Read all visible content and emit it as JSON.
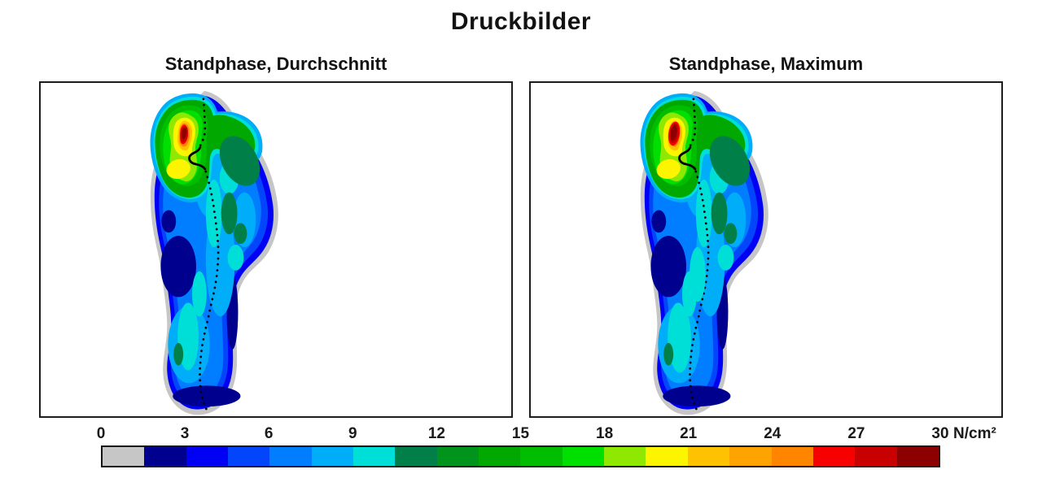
{
  "title": "Druckbilder",
  "panels": [
    {
      "title": "Standphase, Durchschnitt"
    },
    {
      "title": "Standphase, Maximum"
    }
  ],
  "colorbar": {
    "unit": "N/cm²",
    "ticks": [
      "0",
      "3",
      "6",
      "9",
      "12",
      "15",
      "18",
      "21",
      "24",
      "27",
      "30"
    ],
    "segment_colors": [
      "#c6c6c6",
      "#00008e",
      "#0000f5",
      "#0345fa",
      "#007eff",
      "#00adf8",
      "#00ded8",
      "#008048",
      "#00941c",
      "#00a800",
      "#00bd00",
      "#00e000",
      "#8ee800",
      "#fdf400",
      "#ffc100",
      "#ffa300",
      "#ff8400",
      "#f60000",
      "#c90000",
      "#8c0000"
    ]
  },
  "chart_data": {
    "type": "heatmap",
    "title": "Druckbilder",
    "unit": "N/cm²",
    "colorbar": {
      "min": 0,
      "max": 30,
      "tick_step": 3,
      "tick_labels": [
        0,
        3,
        6,
        9,
        12,
        15,
        18,
        21,
        24,
        27,
        30
      ],
      "n_segments": 20,
      "value_per_segment": 1.5,
      "segment_colors": [
        "#c6c6c6",
        "#00008e",
        "#0000f5",
        "#0345fa",
        "#007eff",
        "#00adf8",
        "#00ded8",
        "#008048",
        "#00941c",
        "#00a800",
        "#00bd00",
        "#00e000",
        "#8ee800",
        "#fdf400",
        "#ffc100",
        "#ffa300",
        "#ff8400",
        "#f60000",
        "#c90000",
        "#8c0000"
      ],
      "legend_note": "grey first segment = contact area below 1.5 N/cm²"
    },
    "panels": [
      {
        "title": "Standphase, Durchschnitt",
        "content": "plantar pressure distribution of one foot, toes at top, heel at bottom",
        "features": [
          {
            "region": "medial forefoot peak (hallux / 1st metatarsal)",
            "peak_value_ncm2": 30,
            "appearance": "dark red core with red, orange and yellow rings"
          },
          {
            "region": "secondary medial forefoot spot",
            "peak_value_ncm2": 21,
            "appearance": "yellow blob below the peak"
          },
          {
            "region": "central-lateral forefoot arc",
            "value_range_ncm2": [
              10.5,
              16.5
            ],
            "appearance": "green arc with dark sea-green patches"
          },
          {
            "region": "central midfoot strip",
            "value_range_ncm2": [
              7.5,
              10.5
            ],
            "appearance": "cyan / light blue"
          },
          {
            "region": "medial arch",
            "value_range_ncm2": [
              1.5,
              3
            ],
            "appearance": "dark navy patch"
          },
          {
            "region": "heel centre",
            "value_range_ncm2": [
              7.5,
              12
            ],
            "appearance": "cyan spot with small dark green core"
          },
          {
            "region": "heel rim",
            "value_range_ncm2": [
              1.5,
              3
            ],
            "appearance": "navy band at bottom edge"
          },
          {
            "region": "silhouette outline",
            "value_range_ncm2": [
              0,
              1.5
            ],
            "appearance": "grey contour around the whole foot"
          }
        ],
        "overlay": "dotted black centre-of-pressure gait line running from heel to toes with a small solid loop at metatarsal level"
      },
      {
        "title": "Standphase, Maximum",
        "content": "same foot, maximum pressure per sensor over the stance phase",
        "features": [
          {
            "region": "medial forefoot peak (hallux / 1st metatarsal)",
            "peak_value_ncm2": 30,
            "appearance": "slightly larger dark red core than in the average picture"
          },
          {
            "region": "secondary medial forefoot spot",
            "peak_value_ncm2": 21,
            "appearance": "yellow blob"
          },
          {
            "region": "central-lateral forefoot arc",
            "value_range_ncm2": [
              10.5,
              16.5
            ],
            "appearance": "green arc with dark sea-green patches"
          },
          {
            "region": "central midfoot strip",
            "value_range_ncm2": [
              7.5,
              10.5
            ],
            "appearance": "more extended cyan area"
          },
          {
            "region": "medial arch",
            "value_range_ncm2": [
              1.5,
              3
            ],
            "appearance": "dark navy patch"
          },
          {
            "region": "heel centre",
            "value_range_ncm2": [
              7.5,
              12
            ],
            "appearance": "cyan spot with small dark green core"
          },
          {
            "region": "heel rim",
            "value_range_ncm2": [
              1.5,
              3
            ],
            "appearance": "navy band at bottom edge"
          },
          {
            "region": "silhouette outline",
            "value_range_ncm2": [
              0,
              1.5
            ],
            "appearance": "grey contour around the whole foot"
          }
        ],
        "overlay": "dotted black centre-of-pressure gait line running from heel to toes with a small solid loop at metatarsal level"
      }
    ]
  }
}
